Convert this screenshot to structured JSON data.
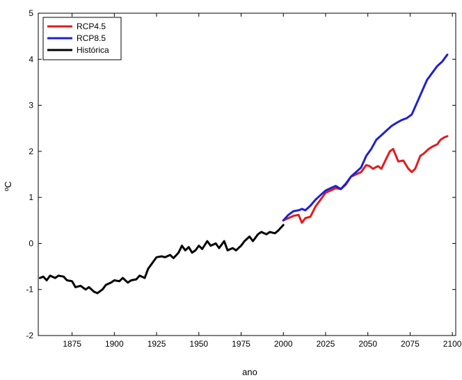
{
  "chart_data": {
    "type": "line",
    "title": "",
    "xlabel": "ano",
    "ylabel": "ºC",
    "xlim": [
      1855,
      2102
    ],
    "ylim": [
      -2,
      5
    ],
    "xticks": [
      1875,
      1900,
      1925,
      1950,
      1975,
      2000,
      2025,
      2050,
      2075,
      2100
    ],
    "yticks": [
      -2,
      -1,
      0,
      1,
      2,
      3,
      4,
      5
    ],
    "grid": false,
    "legend_position": "top-left",
    "series": [
      {
        "name": "RCP4.5",
        "color": "#e41a1c",
        "x": [
          2000,
          2003,
          2006,
          2009,
          2011,
          2013,
          2016,
          2019,
          2022,
          2025,
          2028,
          2031,
          2034,
          2037,
          2040,
          2043,
          2046,
          2049,
          2051,
          2053,
          2056,
          2058,
          2061,
          2063,
          2065,
          2068,
          2071,
          2074,
          2076,
          2078,
          2081,
          2083,
          2086,
          2088,
          2091,
          2093,
          2095,
          2097
        ],
        "y": [
          0.5,
          0.55,
          0.6,
          0.62,
          0.45,
          0.55,
          0.58,
          0.8,
          0.95,
          1.1,
          1.15,
          1.2,
          1.18,
          1.28,
          1.45,
          1.5,
          1.55,
          1.7,
          1.68,
          1.62,
          1.68,
          1.62,
          1.85,
          2.0,
          2.05,
          1.78,
          1.8,
          1.62,
          1.55,
          1.62,
          1.9,
          1.95,
          2.05,
          2.1,
          2.15,
          2.25,
          2.3,
          2.33
        ]
      },
      {
        "name": "RCP8.5",
        "color": "#1f1fd1",
        "x": [
          2000,
          2003,
          2006,
          2009,
          2011,
          2013,
          2016,
          2019,
          2022,
          2025,
          2028,
          2031,
          2034,
          2037,
          2040,
          2043,
          2046,
          2049,
          2052,
          2055,
          2058,
          2061,
          2064,
          2067,
          2070,
          2073,
          2076,
          2079,
          2082,
          2085,
          2088,
          2091,
          2094,
          2097
        ],
        "y": [
          0.5,
          0.62,
          0.7,
          0.72,
          0.75,
          0.72,
          0.82,
          0.95,
          1.05,
          1.15,
          1.2,
          1.25,
          1.18,
          1.3,
          1.45,
          1.55,
          1.65,
          1.9,
          2.05,
          2.25,
          2.35,
          2.45,
          2.55,
          2.62,
          2.68,
          2.72,
          2.8,
          3.05,
          3.3,
          3.55,
          3.7,
          3.85,
          3.95,
          4.1
        ]
      },
      {
        "name": "Histórica",
        "color": "#000000",
        "x": [
          1856,
          1858,
          1860,
          1862,
          1865,
          1867,
          1870,
          1872,
          1875,
          1877,
          1880,
          1883,
          1885,
          1888,
          1890,
          1893,
          1895,
          1898,
          1900,
          1903,
          1905,
          1908,
          1910,
          1913,
          1915,
          1918,
          1920,
          1923,
          1925,
          1928,
          1930,
          1933,
          1935,
          1938,
          1940,
          1942,
          1944,
          1946,
          1948,
          1950,
          1952,
          1955,
          1957,
          1960,
          1962,
          1965,
          1967,
          1970,
          1972,
          1975,
          1977,
          1980,
          1982,
          1985,
          1987,
          1990,
          1992,
          1995,
          1997,
          2000
        ],
        "y": [
          -0.75,
          -0.72,
          -0.8,
          -0.7,
          -0.75,
          -0.7,
          -0.72,
          -0.8,
          -0.82,
          -0.95,
          -0.92,
          -1.0,
          -0.95,
          -1.05,
          -1.08,
          -1.0,
          -0.9,
          -0.85,
          -0.8,
          -0.82,
          -0.75,
          -0.85,
          -0.8,
          -0.78,
          -0.7,
          -0.75,
          -0.55,
          -0.4,
          -0.3,
          -0.28,
          -0.3,
          -0.25,
          -0.32,
          -0.2,
          -0.05,
          -0.15,
          -0.08,
          -0.2,
          -0.15,
          -0.05,
          -0.12,
          0.05,
          -0.05,
          0.0,
          -0.1,
          0.05,
          -0.15,
          -0.1,
          -0.15,
          -0.05,
          0.05,
          0.15,
          0.05,
          0.2,
          0.25,
          0.2,
          0.25,
          0.22,
          0.28,
          0.4
        ]
      }
    ]
  }
}
